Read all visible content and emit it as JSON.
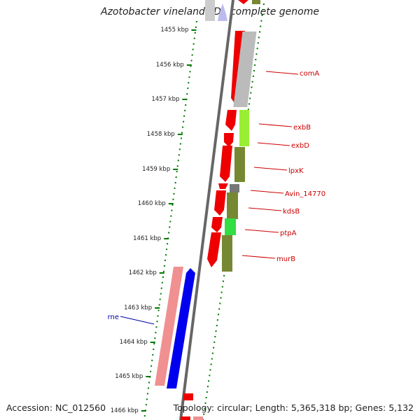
{
  "title": "Azotobacter vinelandii DJ, complete genome",
  "accession_text": "Accession: NC_012560",
  "topology_text": "Topology: circular; Length: 5,365,318 bp; Genes: 5,132",
  "tick_labels": [
    "1455 kbp",
    "1456 kbp",
    "1457 kbp",
    "1458 kbp",
    "1459 kbp",
    "1460 kbp",
    "1461 kbp",
    "1462 kbp",
    "1463 kbp",
    "1464 kbp",
    "1465 kbp",
    "1466 kbp"
  ],
  "gene_labels": [
    {
      "name": "comA",
      "color": "#cc0000"
    },
    {
      "name": "exbB",
      "color": "#cc0000"
    },
    {
      "name": "exbD",
      "color": "#cc0000"
    },
    {
      "name": "lpxK",
      "color": "#cc0000"
    },
    {
      "name": "Avin_14770",
      "color": "#cc0000"
    },
    {
      "name": "kdsB",
      "color": "#cc0000"
    },
    {
      "name": "ptpA",
      "color": "#cc0000"
    },
    {
      "name": "murB",
      "color": "#cc0000"
    },
    {
      "name": "rne",
      "color": "#0000aa"
    }
  ],
  "colors": {
    "backbone": "#888888",
    "forward_cds": "#ee0000",
    "reverse_cds": "#0000ee",
    "tick_green": "#007700",
    "grey_feature": "#bbbbbb",
    "lime_feature": "#99ee33",
    "olive_feature": "#778833",
    "green_feature": "#33dd44",
    "pink_feature": "#f09090"
  }
}
